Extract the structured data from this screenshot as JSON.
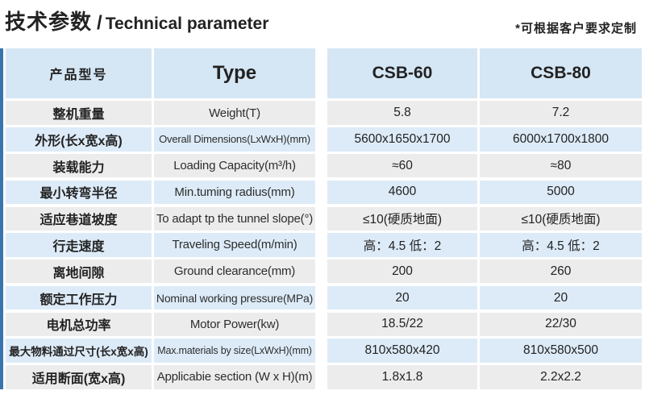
{
  "header": {
    "title_zh": "技术参数",
    "title_sep": "/",
    "title_en": "Technical parameter",
    "note": "*可根据客户要求定制"
  },
  "table": {
    "columns": [
      "产品型号",
      "Type",
      "CSB-60",
      "CSB-80"
    ],
    "rows": [
      {
        "label_zh": "整机重量",
        "label_en": "Weight(T)",
        "csb60": "5.8",
        "csb80": "7.2"
      },
      {
        "label_zh": "外形(长x宽x高)",
        "label_en": "Overall Dimensions(LxWxH)(mm)",
        "csb60": "5600x1650x1700",
        "csb80": "6000x1700x1800"
      },
      {
        "label_zh": "装载能力",
        "label_en": "Loading Capacity(m³/h)",
        "csb60": "≈60",
        "csb80": "≈80"
      },
      {
        "label_zh": "最小转弯半径",
        "label_en": "Min.tuming radius(mm)",
        "csb60": "4600",
        "csb80": "5000"
      },
      {
        "label_zh": "适应巷道坡度",
        "label_en": "To adapt tp the tunnel slope(°)",
        "csb60": "≤10(硬质地面)",
        "csb80": "≤10(硬质地面)"
      },
      {
        "label_zh": "行走速度",
        "label_en": "Traveling Speed(m/min)",
        "csb60": "高：4.5 低：2",
        "csb80": "高：4.5 低：2"
      },
      {
        "label_zh": "离地间隙",
        "label_en": "Ground clearance(mm)",
        "csb60": "200",
        "csb80": "260"
      },
      {
        "label_zh": "额定工作压力",
        "label_en": "Nominal working pressure(MPa)",
        "csb60": "20",
        "csb80": "20"
      },
      {
        "label_zh": "电机总功率",
        "label_en": "Motor Power(kw)",
        "csb60": "18.5/22",
        "csb80": "22/30"
      },
      {
        "label_zh": "最大物料通过尺寸(长x宽x高)",
        "label_en": "Max.materials by size(LxWxH)(mm)",
        "csb60": "810x580x420",
        "csb80": "810x580x500"
      },
      {
        "label_zh": "适用断面(宽x高)",
        "label_en": "Applicabie section (W x H)(m)",
        "csb60": "1.8x1.8",
        "csb80": "2.2x2.2"
      }
    ]
  },
  "colors": {
    "header_bg": "#d5e6f4",
    "row_blue": "#ddebf8",
    "row_gray": "#ececec",
    "accent_strip": "#3a74ad",
    "text": "#222222"
  }
}
